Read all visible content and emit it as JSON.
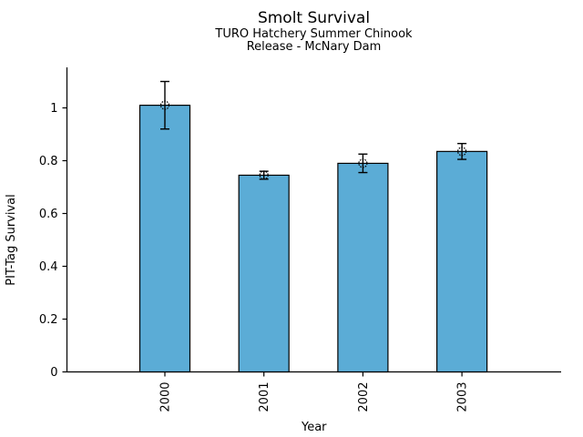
{
  "chart_data": {
    "type": "bar",
    "title": "Smolt Survival",
    "subtitle_line1": "TURO Hatchery Summer Chinook",
    "subtitle_line2": "Release - McNary Dam",
    "xlabel": "Year",
    "ylabel": "PIT-Tag Survival",
    "categories": [
      "2000",
      "2001",
      "2002",
      "2003"
    ],
    "values": [
      1.01,
      0.745,
      0.79,
      0.835
    ],
    "error_upper": [
      1.1,
      0.76,
      0.825,
      0.865
    ],
    "error_lower": [
      0.92,
      0.73,
      0.755,
      0.805
    ],
    "yticks": [
      0,
      0.2,
      0.4,
      0.6,
      0.8,
      1
    ],
    "ytick_labels": [
      "0",
      "0.2",
      "0.4",
      "0.6",
      "0.8",
      "1"
    ],
    "ylim": [
      0,
      1.15
    ],
    "x_tick_label_rotation": 90,
    "grid": false,
    "legend": null,
    "marker": "open-circle-dotted",
    "bar_color": "#5BACD6",
    "bar_edge_color": "#000000",
    "error_color": "#000000",
    "text_color": "#000000"
  }
}
